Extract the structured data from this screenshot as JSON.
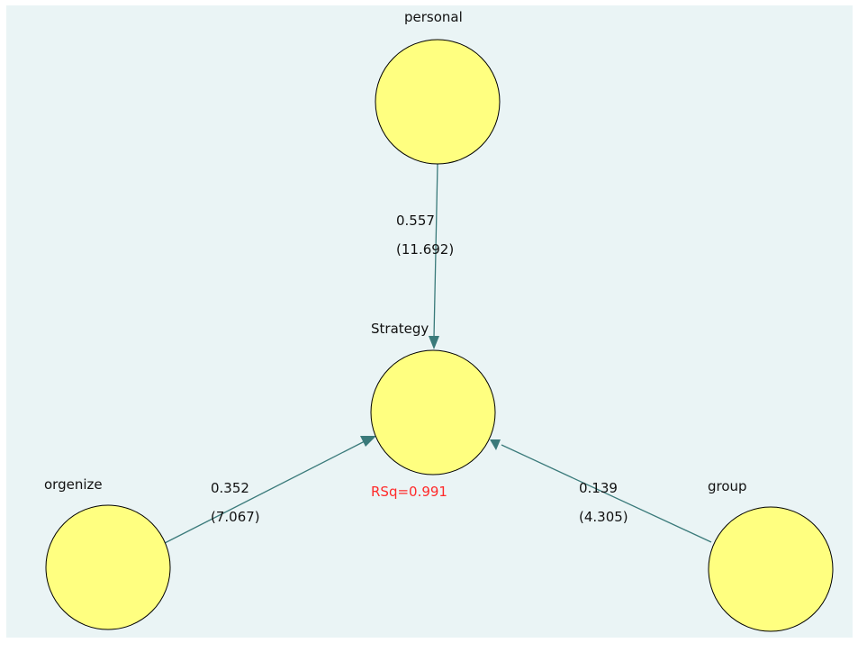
{
  "diagram": {
    "nodes": {
      "personal": {
        "label": "personal"
      },
      "strategy": {
        "label": "Strategy",
        "rsq": "RSq=0.991"
      },
      "organize": {
        "label": "orgenize"
      },
      "group": {
        "label": "group"
      }
    },
    "paths": {
      "personal_to_strategy": {
        "coefficient": "0.557",
        "t_statistic": "(11.692)"
      },
      "organize_to_strategy": {
        "coefficient": "0.352",
        "t_statistic": "(7.067)"
      },
      "group_to_strategy": {
        "coefficient": "0.139",
        "t_statistic": "(4.305)"
      }
    },
    "colors": {
      "background": "#eaf4f5",
      "node_fill": "#ffff80",
      "edge": "#3a7a7a",
      "rsq_text": "#ff2a2a"
    }
  }
}
